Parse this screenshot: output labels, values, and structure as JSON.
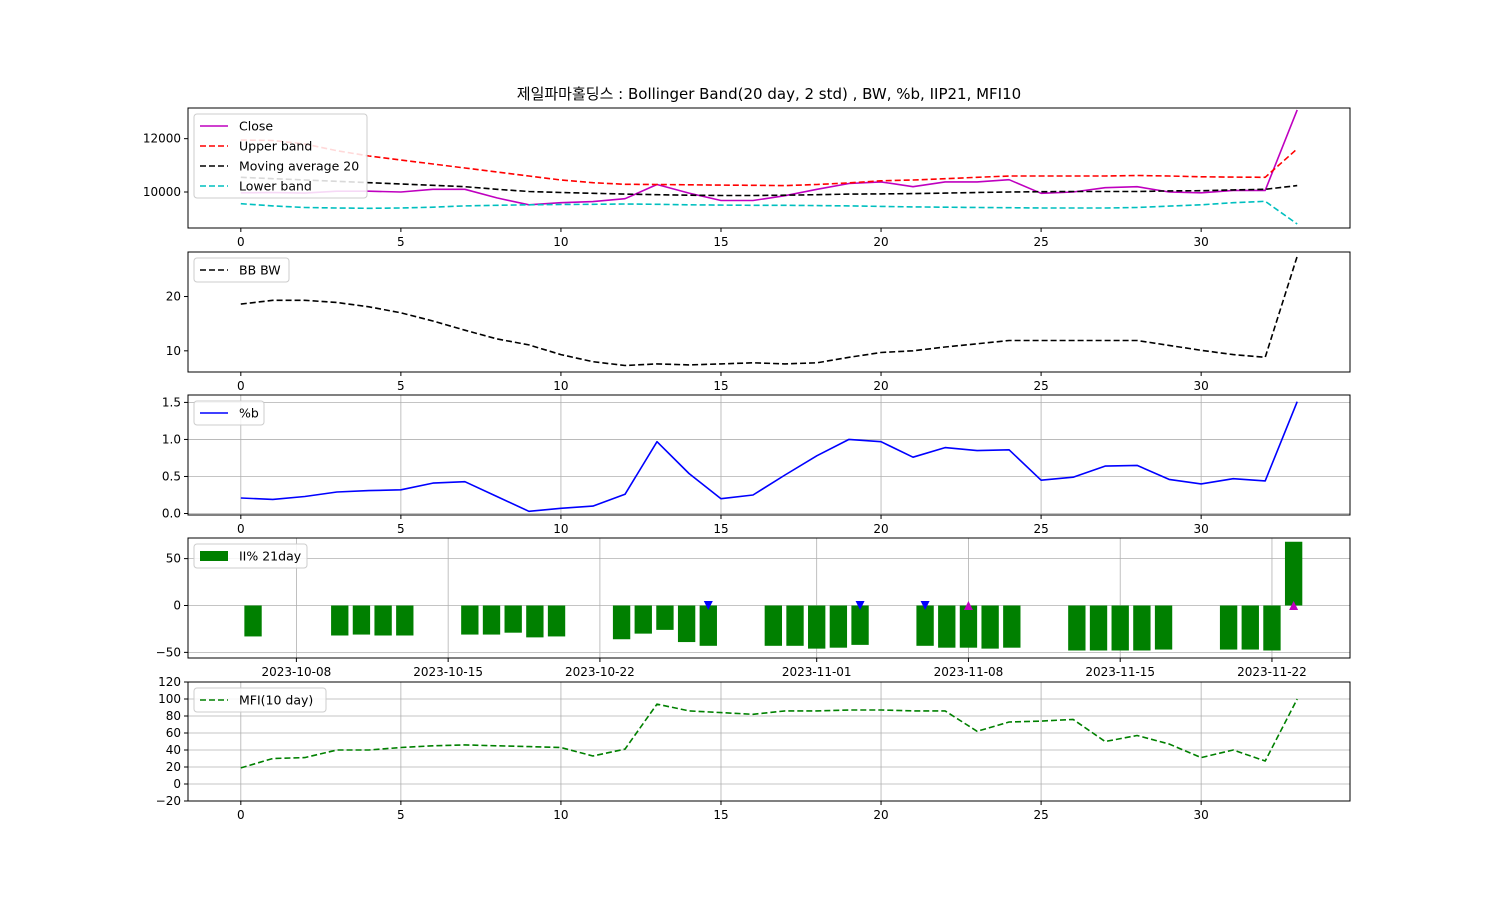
{
  "figure": {
    "title": "제일파마홀딩스 : Bollinger Band(20 day, 2 std) , BW, %b, IIP21, MFI10"
  },
  "chart_data": [
    {
      "type": "line",
      "panel": "price",
      "x": [
        0,
        1,
        2,
        3,
        4,
        5,
        6,
        7,
        8,
        9,
        10,
        11,
        12,
        13,
        14,
        15,
        16,
        17,
        18,
        19,
        20,
        21,
        22,
        23,
        24,
        25,
        26,
        27,
        28,
        29,
        30,
        31,
        32,
        33
      ],
      "xlim": [
        -1.65,
        34.65
      ],
      "ylim": [
        8650,
        13150
      ],
      "yticks": [
        10000,
        12000
      ],
      "xticks": [
        0,
        5,
        10,
        15,
        20,
        25,
        30
      ],
      "grid": false,
      "legend_position": "top-left",
      "series": [
        {
          "name": "Close",
          "color": "#bf00bf",
          "dash": "solid",
          "values": [
            9970,
            9980,
            9960,
            10030,
            10030,
            10000,
            10100,
            10100,
            9780,
            9520,
            9600,
            9640,
            9750,
            10280,
            9960,
            9680,
            9680,
            9860,
            10100,
            10320,
            10380,
            10200,
            10380,
            10380,
            10460,
            9950,
            10000,
            10160,
            10200,
            10000,
            9970,
            10060,
            10060,
            13080
          ]
        },
        {
          "name": "Upper band",
          "color": "#ff0000",
          "dash": "dashed",
          "values": [
            11950,
            11930,
            11800,
            11550,
            11350,
            11200,
            11050,
            10900,
            10750,
            10600,
            10450,
            10350,
            10290,
            10280,
            10270,
            10260,
            10250,
            10240,
            10280,
            10340,
            10420,
            10450,
            10500,
            10550,
            10600,
            10600,
            10600,
            10600,
            10620,
            10600,
            10570,
            10560,
            10550,
            11620
          ]
        },
        {
          "name": "Moving average 20",
          "color": "#000000",
          "dash": "dashed",
          "values": [
            10550,
            10500,
            10450,
            10400,
            10350,
            10300,
            10250,
            10200,
            10100,
            10020,
            9980,
            9950,
            9920,
            9900,
            9880,
            9870,
            9870,
            9880,
            9900,
            9920,
            9930,
            9940,
            9960,
            9980,
            10000,
            10010,
            10020,
            10020,
            10020,
            10040,
            10050,
            10080,
            10100,
            10240
          ]
        },
        {
          "name": "Lower band",
          "color": "#00bfbf",
          "dash": "dashed",
          "values": [
            9560,
            9480,
            9420,
            9400,
            9390,
            9400,
            9430,
            9480,
            9500,
            9520,
            9530,
            9540,
            9550,
            9540,
            9520,
            9510,
            9500,
            9500,
            9490,
            9480,
            9460,
            9440,
            9430,
            9420,
            9410,
            9400,
            9400,
            9400,
            9420,
            9470,
            9520,
            9600,
            9650,
            8800
          ]
        }
      ]
    },
    {
      "type": "line",
      "panel": "bandwidth",
      "x": [
        0,
        1,
        2,
        3,
        4,
        5,
        6,
        7,
        8,
        9,
        10,
        11,
        12,
        13,
        14,
        15,
        16,
        17,
        18,
        19,
        20,
        21,
        22,
        23,
        24,
        25,
        26,
        27,
        28,
        29,
        30,
        31,
        32,
        33
      ],
      "xlim": [
        -1.65,
        34.65
      ],
      "ylim": [
        6.1,
        28.2
      ],
      "yticks": [
        10,
        20
      ],
      "xticks": [
        0,
        5,
        10,
        15,
        20,
        25,
        30
      ],
      "grid": false,
      "legend_position": "top-left",
      "series": [
        {
          "name": "BB BW",
          "color": "#000000",
          "dash": "dashed",
          "values": [
            18.6,
            19.3,
            19.3,
            18.9,
            18.1,
            17.0,
            15.5,
            13.8,
            12.2,
            11.1,
            9.3,
            8.0,
            7.3,
            7.6,
            7.4,
            7.6,
            7.8,
            7.6,
            7.8,
            8.8,
            9.7,
            10.0,
            10.7,
            11.3,
            11.9,
            11.9,
            11.9,
            11.9,
            11.9,
            11.0,
            10.1,
            9.3,
            8.8,
            27.4
          ]
        }
      ]
    },
    {
      "type": "line",
      "panel": "percent_b",
      "x": [
        0,
        1,
        2,
        3,
        4,
        5,
        6,
        7,
        8,
        9,
        10,
        11,
        12,
        13,
        14,
        15,
        16,
        17,
        18,
        19,
        20,
        21,
        22,
        23,
        24,
        25,
        26,
        27,
        28,
        29,
        30,
        31,
        32,
        33
      ],
      "xlim": [
        -1.65,
        34.65
      ],
      "ylim": [
        -0.02,
        1.6
      ],
      "yticks": [
        0.0,
        0.5,
        1.0,
        1.5
      ],
      "xticks": [
        0,
        5,
        10,
        15,
        20,
        25,
        30
      ],
      "grid": true,
      "legend_position": "top-left",
      "series": [
        {
          "name": "%b",
          "color": "#0000ff",
          "dash": "solid",
          "values": [
            0.21,
            0.19,
            0.23,
            0.29,
            0.31,
            0.32,
            0.41,
            0.43,
            0.23,
            0.03,
            0.07,
            0.1,
            0.26,
            0.97,
            0.54,
            0.2,
            0.25,
            0.52,
            0.78,
            1.0,
            0.97,
            0.76,
            0.89,
            0.85,
            0.86,
            0.45,
            0.49,
            0.64,
            0.65,
            0.46,
            0.4,
            0.47,
            0.44,
            1.51
          ]
        }
      ]
    },
    {
      "type": "bar",
      "panel": "ii_percent",
      "xlim_days": [
        -3.0,
        50.6
      ],
      "ylim": [
        -56,
        72
      ],
      "yticks": [
        -50,
        0,
        50
      ],
      "ytick_labels": [
        "−50",
        "0",
        "50"
      ],
      "xticks": [
        "2023-10-08",
        "2023-10-15",
        "2023-10-22",
        "2023-11-01",
        "2023-11-08",
        "2023-11-15",
        "2023-11-22"
      ],
      "xtick_days": [
        2,
        9,
        16,
        26,
        33,
        40,
        47
      ],
      "grid": true,
      "legend_position": "top-left",
      "series": [
        {
          "name": "II% 21day",
          "color": "#008000",
          "dates": [
            "2023-10-06",
            "2023-10-10",
            "2023-10-11",
            "2023-10-12",
            "2023-10-13",
            "2023-10-16",
            "2023-10-17",
            "2023-10-18",
            "2023-10-19",
            "2023-10-20",
            "2023-10-23",
            "2023-10-24",
            "2023-10-25",
            "2023-10-26",
            "2023-10-27",
            "2023-10-30",
            "2023-10-31",
            "2023-11-01",
            "2023-11-02",
            "2023-11-03",
            "2023-11-06",
            "2023-11-07",
            "2023-11-08",
            "2023-11-09",
            "2023-11-10",
            "2023-11-13",
            "2023-11-14",
            "2023-11-15",
            "2023-11-16",
            "2023-11-17",
            "2023-11-20",
            "2023-11-21",
            "2023-11-22",
            "2023-11-23"
          ],
          "values": [
            -33,
            -32,
            -31,
            -32,
            -32,
            -31,
            -31,
            -29,
            -34,
            -33,
            -36,
            -30,
            -26,
            -39,
            -43,
            -43,
            -43,
            -46,
            -45,
            -42,
            -43,
            -45,
            -45,
            -46,
            -45,
            -48,
            -48,
            -48,
            -48,
            -47,
            -47,
            -47,
            -48,
            68
          ]
        }
      ],
      "markers": [
        {
          "date": "2023-10-27",
          "y": 0,
          "shape": "down",
          "color": "#0000ff"
        },
        {
          "date": "2023-11-03",
          "y": 0,
          "shape": "down",
          "color": "#0000ff"
        },
        {
          "date": "2023-11-06",
          "y": 0,
          "shape": "down",
          "color": "#0000ff"
        },
        {
          "date": "2023-11-08",
          "y": 0,
          "shape": "up",
          "color": "#bf00bf"
        },
        {
          "date": "2023-11-23",
          "y": 0,
          "shape": "up",
          "color": "#bf00bf"
        }
      ]
    },
    {
      "type": "line",
      "panel": "mfi",
      "x": [
        0,
        1,
        2,
        3,
        4,
        5,
        6,
        7,
        8,
        9,
        10,
        11,
        12,
        13,
        14,
        15,
        16,
        17,
        18,
        19,
        20,
        21,
        22,
        23,
        24,
        25,
        26,
        27,
        28,
        29,
        30,
        31,
        32,
        33
      ],
      "xlim": [
        -1.65,
        34.65
      ],
      "ylim": [
        -20,
        120
      ],
      "yticks": [
        -20,
        0,
        20,
        40,
        60,
        80,
        100,
        120
      ],
      "ytick_labels": [
        "−20",
        "0",
        "20",
        "40",
        "60",
        "80",
        "100",
        "120"
      ],
      "xticks": [
        0,
        5,
        10,
        15,
        20,
        25,
        30
      ],
      "grid": true,
      "legend_position": "top-left",
      "series": [
        {
          "name": "MFI(10 day)",
          "color": "#008000",
          "dash": "dashed",
          "values": [
            19,
            30,
            31,
            40,
            40,
            43,
            45,
            46,
            45,
            44,
            43,
            33,
            41,
            94,
            86,
            84,
            82,
            86,
            86,
            87,
            87,
            86,
            86,
            62,
            73,
            74,
            76,
            50,
            57,
            47,
            31,
            40,
            27,
            100
          ]
        }
      ]
    }
  ]
}
